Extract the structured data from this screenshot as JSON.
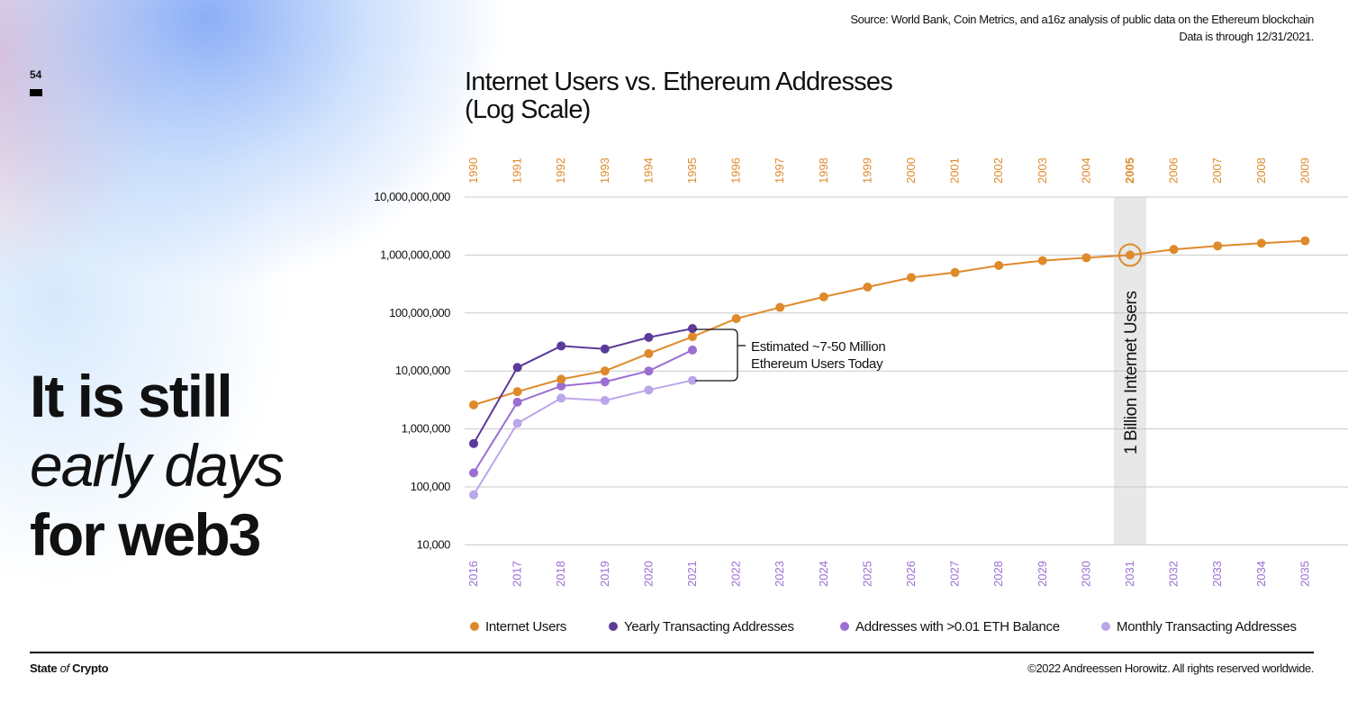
{
  "page_number": "54",
  "headline": {
    "line1": "It is still",
    "line2": "early days",
    "line3": "for web3"
  },
  "source": {
    "line1": "Source: World Bank, Coin Metrics, and a16z analysis of public data on the Ethereum blockchain",
    "line2": "Data is through 12/31/2021."
  },
  "footer": {
    "brand_pre": "State ",
    "brand_of": "of",
    "brand_post": " Crypto",
    "copyright": "©2022 Andreessen Horowitz. All rights reserved worldwide."
  },
  "colors": {
    "internet": "#de8a2b",
    "yearly": "#5c3a9a",
    "balance": "#9a6fd1",
    "monthly": "#bba6ea",
    "grid": "#c9c9c9",
    "highlight": "#e8e8e8"
  },
  "chart_data": {
    "type": "line",
    "title": "Internet Users vs. Ethereum Addresses\n(Log Scale)",
    "yscale": "log",
    "ylim": [
      10000,
      10000000000
    ],
    "y_ticks": [
      "10,000,000,000",
      "1,000,000,000",
      "100,000,000",
      "10,000,000",
      "1,000,000",
      "100,000",
      "10,000"
    ],
    "x_top_labels": [
      "1990",
      "1991",
      "1992",
      "1993",
      "1994",
      "1995",
      "1996",
      "1997",
      "1998",
      "1999",
      "2000",
      "2001",
      "2002",
      "2003",
      "2004",
      "2005",
      "2006",
      "2007",
      "2008",
      "2009"
    ],
    "x_bottom_labels": [
      "2016",
      "2017",
      "2018",
      "2019",
      "2020",
      "2021",
      "2022",
      "2023",
      "2024",
      "2025",
      "2026",
      "2027",
      "2028",
      "2029",
      "2030",
      "2031",
      "2032",
      "2033",
      "2034",
      "2035"
    ],
    "series": [
      {
        "name": "Internet Users",
        "color": "#de8a2b",
        "values": [
          2600000,
          4400000,
          7200000,
          10000000,
          20000000,
          39000000,
          80000000,
          125000000,
          190000000,
          280000000,
          410000000,
          500000000,
          660000000,
          800000000,
          900000000,
          1000000000,
          1250000000,
          1440000000,
          1600000000,
          1760000000
        ]
      },
      {
        "name": "Yearly Transacting Addresses",
        "color": "#5c3a9a",
        "values": [
          560000,
          11500000,
          27000000,
          24000000,
          38000000,
          54000000
        ]
      },
      {
        "name": "Addresses with >0.01 ETH Balance",
        "color": "#9a6fd1",
        "values": [
          175000,
          2900000,
          5500000,
          6500000,
          10000000,
          23000000
        ]
      },
      {
        "name": "Monthly Transacting Addresses",
        "color": "#bba6ea",
        "values": [
          73000,
          1250000,
          3400000,
          3100000,
          4700000,
          6900000
        ]
      }
    ],
    "annotations": {
      "bracket": "Estimated ~7-50 Million\nEthereum Users Today",
      "highlight_label": "1 Billion Internet Users",
      "highlight_top_label": "2005",
      "highlight_bottom_label": "2031"
    },
    "legend": [
      "Internet Users",
      "Yearly Transacting Addresses",
      "Addresses with >0.01 ETH Balance",
      "Monthly Transacting Addresses"
    ],
    "legend_position": "bottom",
    "grid": true
  }
}
